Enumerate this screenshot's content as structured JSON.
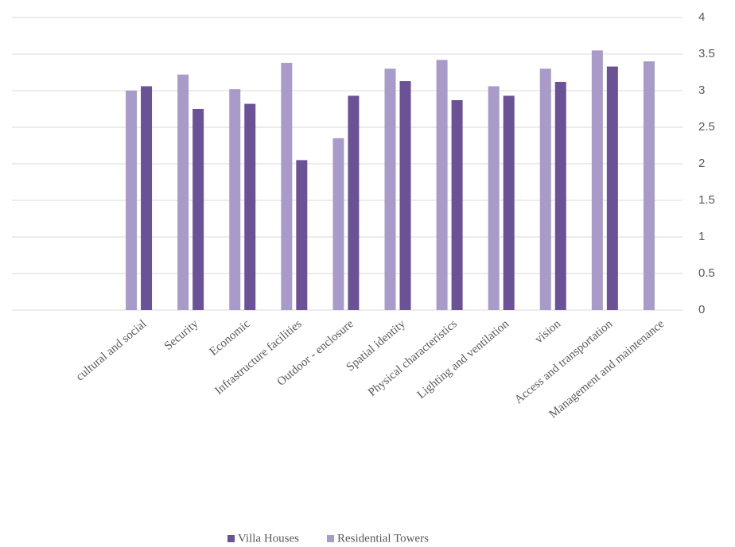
{
  "chart_data": {
    "type": "bar",
    "categories": [
      "cultural and social",
      "Security",
      "Economic",
      "Infrastructure facilities",
      "Outdoor - enclosure",
      "Spatial identity",
      "Physical characteristics",
      "Lighting and ventilation",
      "vision",
      "Access and transportation",
      "Management and maintenance"
    ],
    "series": [
      {
        "name": "Villa Houses",
        "color": "#6b5296",
        "values": [
          3.06,
          2.75,
          2.82,
          2.05,
          2.93,
          3.13,
          2.87,
          2.93,
          3.12,
          3.33,
          null
        ]
      },
      {
        "name": "Residential Towers",
        "color": "#a99bc9",
        "values": [
          3.0,
          3.22,
          3.02,
          3.38,
          2.35,
          3.3,
          3.42,
          3.06,
          3.3,
          3.55,
          3.4
        ]
      }
    ],
    "ylim": [
      0,
      4
    ],
    "yticks": [
      0,
      0.5,
      1,
      1.5,
      2,
      2.5,
      3,
      3.5,
      4
    ],
    "grid": true,
    "legend": "bottom"
  }
}
